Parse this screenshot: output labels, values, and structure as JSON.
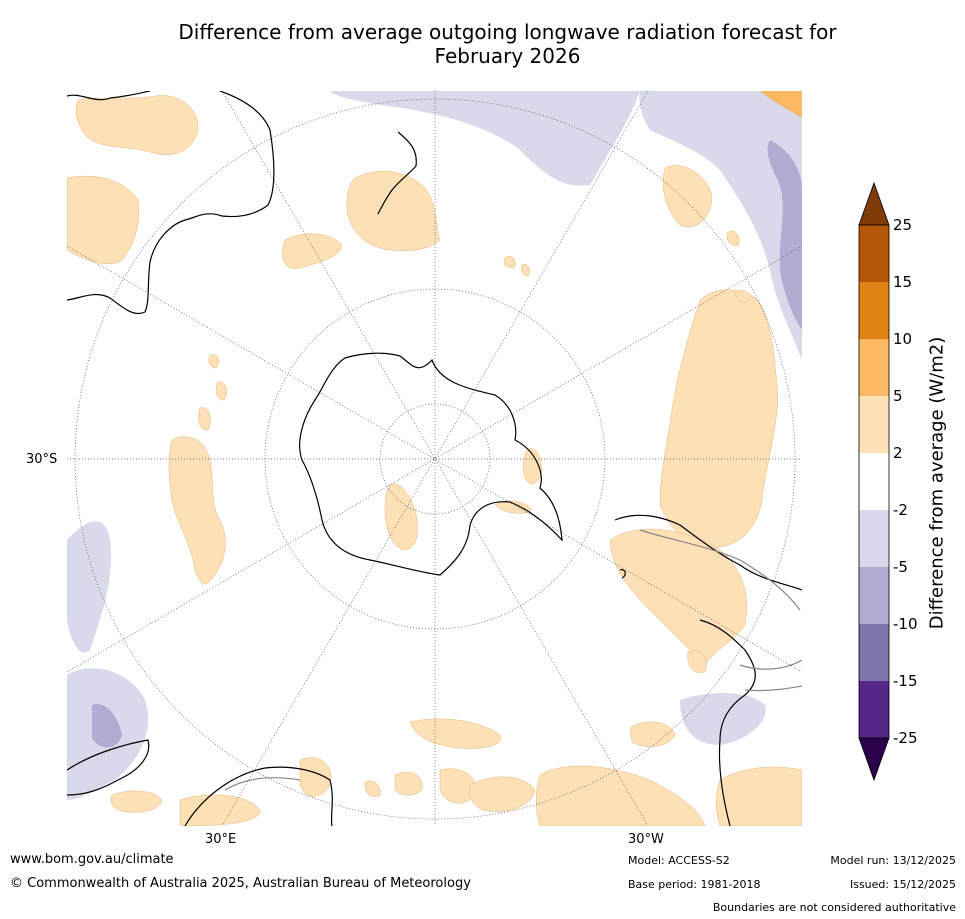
{
  "title_line1": "Difference from average outgoing longwave radiation forecast for",
  "title_line2": "February 2026",
  "labels": {
    "lat_30s": "30°S",
    "lon_30e": "30°E",
    "lon_30w": "30°W"
  },
  "colorbar": {
    "label": "Difference from average (W/m2)",
    "ticks": [
      "25",
      "15",
      "10",
      "5",
      "2",
      "-2",
      "-5",
      "-10",
      "-15",
      "-25"
    ],
    "colors": {
      "over": "#7f3b08",
      "b15_25": "#b35806",
      "b10_15": "#e08214",
      "b5_10": "#fdb863",
      "b2_5": "#fee0b6",
      "neutral": "#ffffff",
      "bm2_m5": "#d8daeb",
      "bm5_m10": "#b2abd2",
      "bm10_m15": "#8073ac",
      "bm15_m25": "#542788",
      "under": "#2d004b"
    }
  },
  "footer": {
    "website": "www.bom.gov.au/climate",
    "copyright": "© Commonwealth of Australia 2025, Australian Bureau of Meteorology",
    "model": "Model: ACCESS-S2",
    "base_period": "Base period: 1981-2018",
    "model_run": "Model run: 13/12/2025",
    "issued": "Issued: 15/12/2025",
    "disclaimer": "Boundaries are not considered authoritative"
  }
}
